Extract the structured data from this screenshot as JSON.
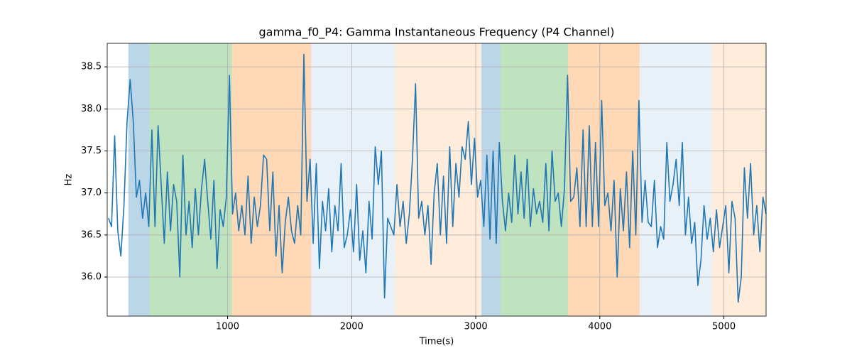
{
  "chart_data": {
    "type": "line",
    "title": "gamma_f0_P4: Gamma Instantaneous Frequency (P4 Channel)",
    "x_label": "Time(s)",
    "y_label": "Hz",
    "xlim": [
      30,
      5340
    ],
    "ylim": [
      35.535,
      38.78
    ],
    "xticks": [
      1000,
      2000,
      3000,
      4000,
      5000
    ],
    "yticks": [
      {
        "value": 36,
        "label": "36.0"
      },
      36.5,
      {
        "value": 37,
        "label": "37.0"
      },
      37.5,
      {
        "value": 38,
        "label": "38.0"
      },
      38.5
    ],
    "grid": true,
    "spans": [
      {
        "start": 200,
        "end": 371,
        "color": "rgba(31,119,180,0.3)"
      },
      {
        "start": 371,
        "end": 1034,
        "color": "rgba(44,160,44,0.3)"
      },
      {
        "start": 1034,
        "end": 1674,
        "color": "rgba(255,127,14,0.3)"
      },
      {
        "start": 1674,
        "end": 2349,
        "color": "rgba(31,119,180,0.1)"
      },
      {
        "start": 2349,
        "end": 3046,
        "color": "rgba(255,127,14,0.15)"
      },
      {
        "start": 3046,
        "end": 3200,
        "color": "rgba(31,119,180,0.3)"
      },
      {
        "start": 3200,
        "end": 3743,
        "color": "rgba(44,160,44,0.3)"
      },
      {
        "start": 3743,
        "end": 4320,
        "color": "rgba(255,127,14,0.3)"
      },
      {
        "start": 4320,
        "end": 4903,
        "color": "rgba(31,119,180,0.1)"
      },
      {
        "start": 4903,
        "end": 5340,
        "color": "rgba(255,127,14,0.15)"
      }
    ],
    "x": [
      40,
      65,
      90,
      115,
      140,
      165,
      190,
      215,
      240,
      265,
      290,
      315,
      340,
      365,
      390,
      415,
      440,
      465,
      490,
      515,
      540,
      565,
      590,
      615,
      640,
      665,
      690,
      715,
      740,
      765,
      790,
      815,
      840,
      865,
      890,
      915,
      940,
      965,
      990,
      1015,
      1040,
      1065,
      1090,
      1115,
      1140,
      1165,
      1190,
      1215,
      1240,
      1265,
      1290,
      1315,
      1340,
      1365,
      1390,
      1415,
      1440,
      1465,
      1490,
      1515,
      1540,
      1565,
      1590,
      1615,
      1640,
      1665,
      1690,
      1715,
      1740,
      1765,
      1790,
      1815,
      1840,
      1865,
      1890,
      1915,
      1940,
      1965,
      1990,
      2015,
      2040,
      2065,
      2090,
      2115,
      2140,
      2165,
      2190,
      2215,
      2240,
      2265,
      2290,
      2315,
      2340,
      2365,
      2390,
      2415,
      2440,
      2465,
      2490,
      2515,
      2540,
      2565,
      2590,
      2615,
      2640,
      2665,
      2690,
      2715,
      2740,
      2765,
      2790,
      2815,
      2840,
      2865,
      2890,
      2915,
      2940,
      2965,
      2990,
      3015,
      3040,
      3065,
      3090,
      3115,
      3140,
      3165,
      3190,
      3215,
      3240,
      3265,
      3290,
      3315,
      3340,
      3365,
      3390,
      3415,
      3440,
      3465,
      3490,
      3515,
      3540,
      3565,
      3590,
      3615,
      3640,
      3665,
      3690,
      3715,
      3740,
      3765,
      3790,
      3815,
      3840,
      3865,
      3890,
      3915,
      3940,
      3965,
      3990,
      4015,
      4040,
      4065,
      4090,
      4115,
      4140,
      4165,
      4190,
      4215,
      4240,
      4265,
      4290,
      4315,
      4340,
      4365,
      4390,
      4415,
      4440,
      4465,
      4490,
      4515,
      4540,
      4565,
      4590,
      4615,
      4640,
      4665,
      4690,
      4715,
      4740,
      4765,
      4790,
      4815,
      4840,
      4865,
      4890,
      4915,
      4940,
      4965,
      4990,
      5015,
      5040,
      5065,
      5090,
      5115,
      5140,
      5165,
      5190,
      5215,
      5240,
      5265,
      5290,
      5315,
      5340
    ],
    "series": [
      {
        "color": "#1f77b4",
        "values": [
          36.7,
          36.6,
          37.68,
          36.55,
          36.25,
          36.85,
          37.85,
          38.35,
          37.85,
          36.95,
          37.15,
          36.7,
          37.0,
          36.6,
          37.75,
          36.6,
          37.8,
          37.1,
          36.4,
          37.25,
          36.55,
          37.1,
          36.9,
          36.0,
          37.45,
          36.5,
          36.9,
          36.35,
          37.05,
          36.5,
          37.05,
          37.4,
          36.9,
          36.45,
          37.15,
          36.1,
          36.8,
          36.6,
          36.95,
          38.4,
          36.75,
          37.0,
          36.55,
          36.85,
          36.5,
          37.2,
          36.4,
          36.95,
          36.6,
          36.85,
          37.45,
          37.4,
          36.55,
          37.25,
          36.25,
          36.85,
          36.05,
          36.65,
          36.95,
          36.55,
          36.4,
          36.85,
          36.5,
          38.65,
          36.9,
          37.4,
          36.4,
          37.35,
          36.1,
          36.9,
          36.55,
          37.05,
          36.3,
          36.85,
          36.55,
          37.35,
          36.35,
          36.5,
          36.8,
          36.3,
          37.1,
          36.2,
          36.55,
          36.05,
          36.9,
          36.45,
          37.55,
          37.1,
          37.5,
          35.75,
          36.7,
          36.6,
          36.5,
          37.1,
          36.6,
          36.9,
          36.4,
          36.75,
          37.4,
          38.3,
          36.7,
          36.9,
          36.5,
          36.85,
          36.15,
          37.0,
          37.35,
          36.5,
          37.2,
          36.4,
          37.55,
          36.6,
          37.35,
          36.95,
          37.55,
          37.4,
          37.85,
          37.1,
          37.65,
          36.95,
          37.15,
          36.6,
          37.45,
          36.45,
          37.5,
          36.4,
          37.6,
          36.9,
          36.55,
          37.0,
          36.65,
          37.45,
          36.75,
          37.25,
          36.7,
          37.4,
          36.6,
          37.05,
          36.75,
          36.9,
          36.65,
          37.35,
          36.55,
          37.5,
          36.9,
          37.0,
          36.6,
          37.05,
          38.4,
          36.9,
          36.95,
          37.3,
          36.6,
          37.75,
          36.6,
          37.8,
          36.6,
          37.6,
          36.6,
          38.1,
          36.85,
          37.0,
          36.55,
          37.15,
          36.0,
          37.05,
          36.55,
          37.25,
          36.35,
          37.5,
          36.5,
          38.1,
          36.65,
          37.15,
          36.65,
          36.6,
          37.15,
          36.35,
          36.6,
          36.45,
          37.6,
          36.9,
          37.1,
          37.4,
          36.85,
          37.6,
          36.5,
          36.95,
          36.4,
          36.65,
          35.9,
          36.2,
          36.85,
          36.45,
          36.7,
          36.3,
          36.8,
          36.35,
          36.6,
          36.85,
          36.05,
          36.9,
          36.7,
          35.7,
          36.0,
          37.3,
          36.7,
          37.35,
          36.5,
          36.85,
          36.3,
          36.95,
          36.75
        ]
      }
    ]
  }
}
